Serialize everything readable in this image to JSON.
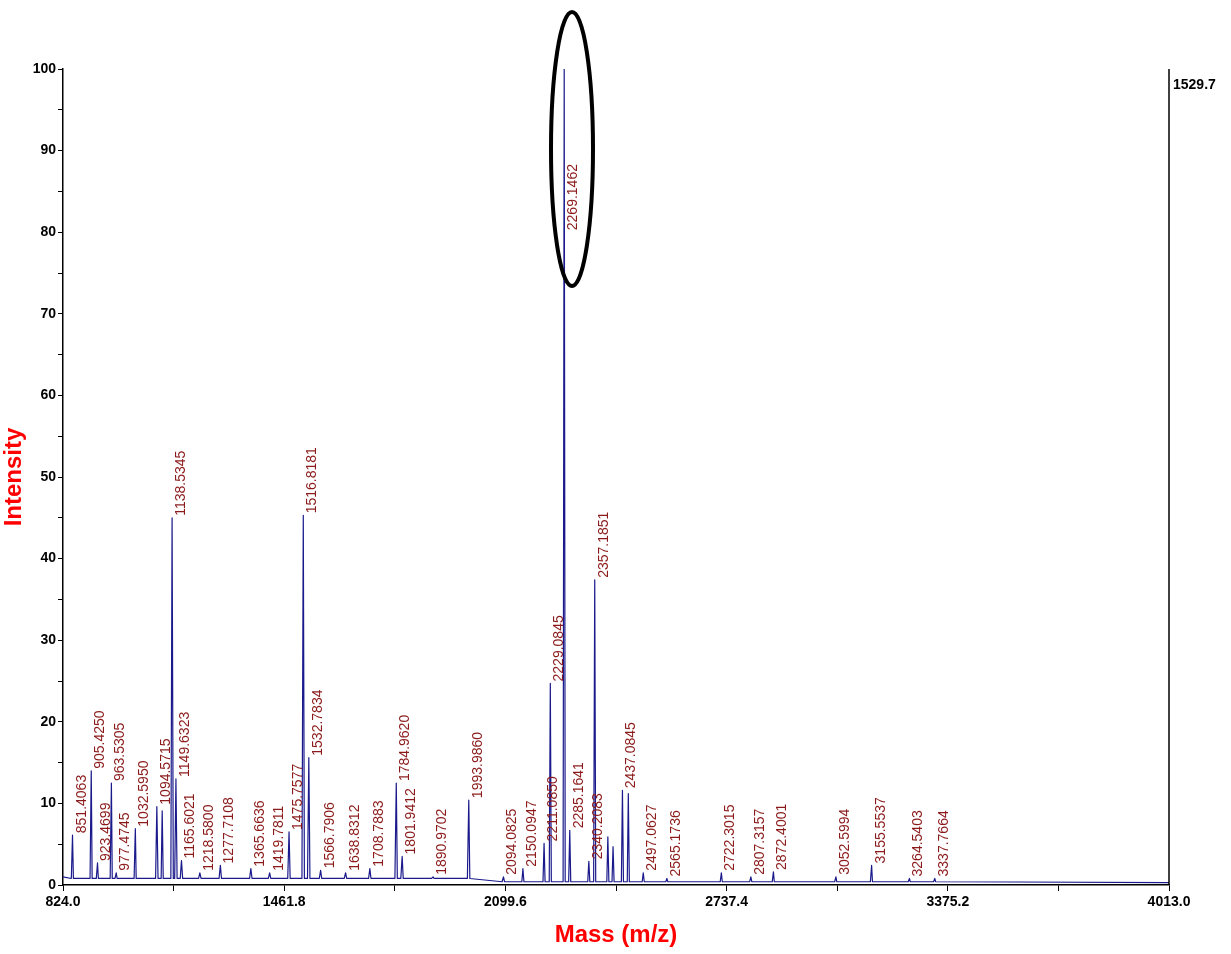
{
  "chart_data": {
    "type": "line",
    "xlabel": "Mass (m/z)",
    "ylabel": "Intensity",
    "annotations": [
      "1529.7",
      {
        "text": "851.4063",
        "x": 851.4063,
        "y": 6.1
      },
      {
        "text": "905.4250",
        "x": 905.425,
        "y": 14
      },
      {
        "text": "923.4699",
        "x": 923.4699,
        "y": 2.7
      },
      {
        "text": "963.5305",
        "x": 963.5305,
        "y": 12.5
      },
      {
        "text": "977.4745",
        "x": 977.4745,
        "y": 1.5
      },
      {
        "text": "1032.5950",
        "x": 1032.595,
        "y": 6.9
      },
      {
        "text": "1094.5715",
        "x": 1094.5715,
        "y": 9.6
      },
      {
        "text": "1138.5345",
        "x": 1138.5345,
        "y": 45
      },
      {
        "text": "1149.6323",
        "x": 1149.6323,
        "y": 13
      },
      {
        "text": "1165.6021",
        "x": 1165.6021,
        "y": 3
      },
      {
        "text": "1218.5800",
        "x": 1218.58,
        "y": 1.5
      },
      {
        "text": "1277.7108",
        "x": 1277.7108,
        "y": 2.4
      },
      {
        "text": "1365.6636",
        "x": 1365.6636,
        "y": 2
      },
      {
        "text": "1419.7811",
        "x": 1419.7811,
        "y": 1.5
      },
      {
        "text": "1475.7577",
        "x": 1475.7577,
        "y": 6.5
      },
      {
        "text": "1516.8181",
        "x": 1516.8181,
        "y": 45.3
      },
      {
        "text": "1532.7834",
        "x": 1532.7834,
        "y": 15.6
      },
      {
        "text": "1566.7906",
        "x": 1566.7906,
        "y": 1.8
      },
      {
        "text": "1638.8312",
        "x": 1638.8312,
        "y": 1.5
      },
      {
        "text": "1708.7883",
        "x": 1708.7883,
        "y": 2
      },
      {
        "text": "1784.9620",
        "x": 1784.962,
        "y": 12.5
      },
      {
        "text": "1801.9412",
        "x": 1801.9412,
        "y": 3.5
      },
      {
        "text": "1890.9702",
        "x": 1890.9702,
        "y": 1
      },
      {
        "text": "1993.9860",
        "x": 1993.986,
        "y": 10.4
      },
      {
        "text": "2094.0825",
        "x": 2094.0825,
        "y": 1
      },
      {
        "text": "2150.0947",
        "x": 2150.0947,
        "y": 2
      },
      {
        "text": "2211.0850",
        "x": 2211.085,
        "y": 5.1
      },
      {
        "text": "2229.0845",
        "x": 2229.0845,
        "y": 24.7
      },
      {
        "text": "2269.1462",
        "x": 2269.1462,
        "y": 80
      },
      {
        "text": "2285.1641",
        "x": 2285.1641,
        "y": 6.7
      },
      {
        "text": "2340.2083",
        "x": 2340.2083,
        "y": 2.9
      },
      {
        "text": "2357.1851",
        "x": 2357.1851,
        "y": 37.4
      },
      {
        "text": "2437.0845",
        "x": 2437.0845,
        "y": 11.6
      },
      {
        "text": "2497.0627",
        "x": 2497.0627,
        "y": 1.5
      },
      {
        "text": "2565.1736",
        "x": 2565.1736,
        "y": 0.8
      },
      {
        "text": "2722.3015",
        "x": 2722.3015,
        "y": 1.5
      },
      {
        "text": "2807.3157",
        "x": 2807.3157,
        "y": 1
      },
      {
        "text": "2872.4001",
        "x": 2872.4001,
        "y": 1.6
      },
      {
        "text": "3052.5994",
        "x": 3052.5994,
        "y": 1
      },
      {
        "text": "3155.5537",
        "x": 3155.5537,
        "y": 2.4
      },
      {
        "text": "3264.5403",
        "x": 3264.5403,
        "y": 0.8
      },
      {
        "text": "3337.7664",
        "x": 3337.7664,
        "y": 0.8
      }
    ],
    "xlim": [
      824,
      4013
    ],
    "xticks": [
      {
        "value": 824,
        "label": "824.0"
      },
      {
        "value": 1142.9,
        "label": null
      },
      {
        "value": 1461.8,
        "label": "1461.8"
      },
      {
        "value": 1780.7,
        "label": null
      },
      {
        "value": 2099.6,
        "label": "2099.6"
      },
      {
        "value": 2418.5,
        "label": null
      },
      {
        "value": 2737.4,
        "label": "2737.4"
      },
      {
        "value": 3056.3,
        "label": null
      },
      {
        "value": 3375.2,
        "label": "3375.2"
      },
      {
        "value": 3694.1,
        "label": null
      },
      {
        "value": 4013,
        "label": "4013.0"
      }
    ],
    "ylim": [
      0,
      100
    ],
    "yticks": [
      0,
      {
        "value": 5,
        "label": null
      },
      10,
      {
        "value": 15,
        "label": null
      },
      20,
      {
        "value": 25,
        "label": null
      },
      30,
      {
        "value": 35,
        "label": null
      },
      40,
      {
        "value": 45,
        "label": null
      },
      50,
      {
        "value": 55,
        "label": null
      },
      60,
      {
        "value": 65,
        "label": null
      },
      70,
      {
        "value": 75,
        "label": null
      },
      80,
      {
        "value": 85,
        "label": null
      },
      90,
      {
        "value": 95,
        "label": null
      },
      100
    ],
    "grid": false,
    "legend": false,
    "marker": "none",
    "line_style": "solid",
    "series": [
      {
        "color": "#1a1a8c",
        "x": [
          824,
          848,
          851.4063,
          854,
          902,
          905.425,
          908,
          920,
          923.4699,
          926,
          960,
          963.5305,
          966,
          974,
          977.4745,
          980,
          1029,
          1032.595,
          1035,
          1091,
          1094.5715,
          1098,
          1107,
          1110,
          1113,
          1135,
          1138.5345,
          1142,
          1146,
          1149.6323,
          1153,
          1162,
          1165.6021,
          1169,
          1215,
          1218.58,
          1222,
          1274,
          1277.7108,
          1281,
          1362,
          1365.6636,
          1369,
          1416,
          1419.7811,
          1423,
          1472,
          1475.7577,
          1479,
          1513,
          1516.8181,
          1520,
          1529,
          1532.7834,
          1536,
          1563,
          1566.7906,
          1570,
          1635,
          1638.8312,
          1642,
          1705,
          1708.7883,
          1712,
          1781,
          1784.962,
          1788,
          1798,
          1801.9412,
          1805,
          1887,
          1890.9702,
          1894,
          1990,
          1993.986,
          1997,
          2090,
          2094.0825,
          2097,
          2147,
          2150.0947,
          2153,
          2208,
          2211.085,
          2214,
          2226,
          2229.0845,
          2232,
          2266,
          2269.1462,
          2272,
          2282,
          2285.1641,
          2288,
          2337,
          2340.2083,
          2343,
          2354,
          2357.1851,
          2360,
          2392,
          2395,
          2398,
          2407,
          2410,
          2413,
          2434,
          2437.0845,
          2440,
          2451,
          2454,
          2457,
          2494,
          2497.0627,
          2500,
          2562,
          2565.1736,
          2568,
          2719,
          2722.3015,
          2725,
          2804,
          2807.3157,
          2810,
          2869,
          2872.4001,
          2875,
          3049,
          3052.5994,
          3055,
          3152,
          3155.5537,
          3158,
          3261,
          3264.5403,
          3267,
          3334,
          3337.7664,
          3340,
          4013
        ],
        "values": [
          1,
          0.8,
          6.1,
          0.8,
          0.8,
          14,
          0.8,
          0.8,
          2.7,
          0.8,
          0.8,
          12.5,
          0.8,
          0.8,
          1.5,
          0.8,
          0.8,
          6.9,
          0.8,
          0.8,
          9.6,
          0.8,
          0.8,
          9.1,
          0.8,
          0.8,
          45,
          0.8,
          0.8,
          13,
          0.8,
          0.8,
          3,
          0.8,
          0.8,
          1.5,
          0.8,
          0.8,
          2.4,
          0.8,
          0.8,
          2,
          0.8,
          0.8,
          1.5,
          0.8,
          0.8,
          6.5,
          0.8,
          0.8,
          45.3,
          0.8,
          0.8,
          15.6,
          0.8,
          0.8,
          1.8,
          0.8,
          0.8,
          1.5,
          0.8,
          0.8,
          2,
          0.8,
          0.8,
          12.5,
          0.8,
          0.8,
          3.5,
          0.8,
          0.8,
          1,
          0.8,
          0.8,
          10.4,
          0.8,
          0.4,
          1,
          0.4,
          0.4,
          2,
          0.4,
          0.4,
          5.1,
          0.4,
          0.4,
          24.7,
          0.4,
          0.4,
          100,
          0.4,
          0.4,
          6.7,
          0.4,
          0.4,
          2.9,
          0.4,
          0.4,
          37.4,
          0.4,
          0.4,
          5.9,
          0.4,
          0.4,
          4.7,
          0.4,
          0.4,
          11.6,
          0.4,
          0.4,
          11.2,
          0.4,
          0.4,
          1.5,
          0.4,
          0.4,
          0.8,
          0.4,
          0.4,
          1.5,
          0.4,
          0.4,
          1,
          0.4,
          0.4,
          1.6,
          0.4,
          0.4,
          1,
          0.4,
          0.4,
          2.4,
          0.4,
          0.4,
          0.8,
          0.4,
          0.4,
          0.8,
          0.4,
          0.3
        ]
      }
    ]
  }
}
